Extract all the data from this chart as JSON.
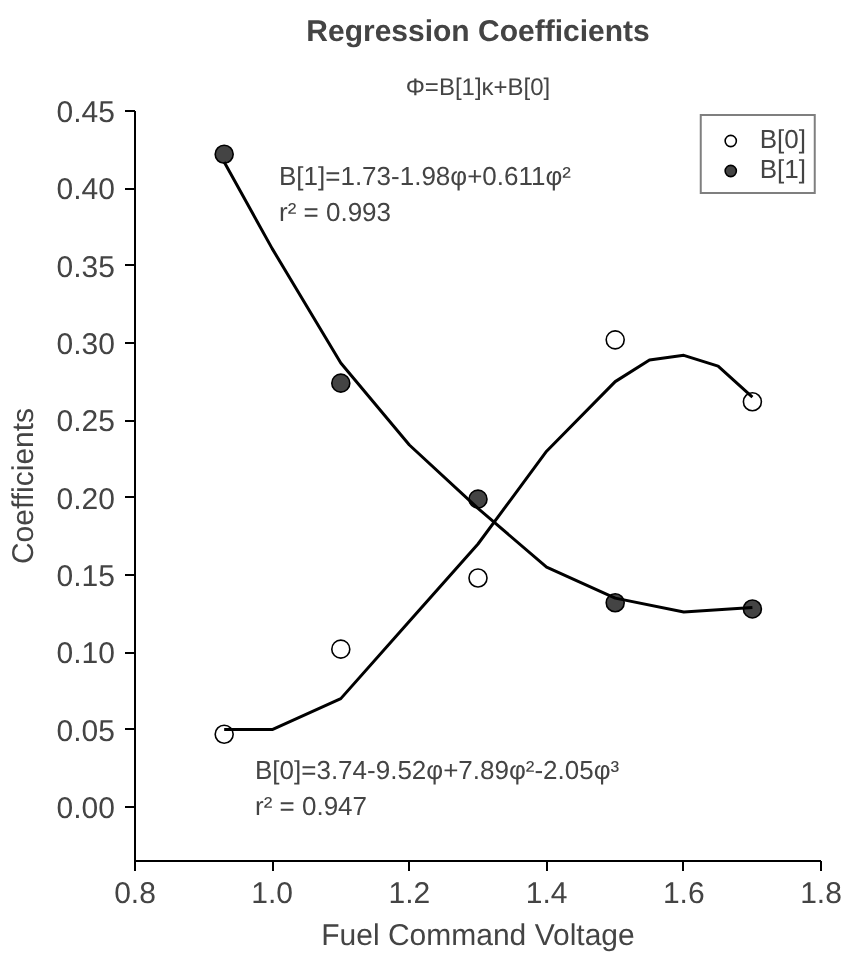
{
  "chart_data": {
    "type": "scatter",
    "title": "Regression Coefficients",
    "subtitle": "Φ=B[1]κ+B[0]",
    "xlabel": "Fuel Command Voltage",
    "ylabel": "Coefficients",
    "xlim": [
      0.8,
      1.8
    ],
    "xticks": [
      0.8,
      {
        "value": 1.0,
        "label": "1.0"
      },
      1.2,
      1.4,
      1.6,
      1.8
    ],
    "ylim": [
      -0.035,
      0.45
    ],
    "yticks": [
      {
        "value": 0.0,
        "label": "0.00"
      },
      0.05,
      {
        "value": 0.1,
        "label": "0.10"
      },
      0.15,
      {
        "value": 0.2,
        "label": "0.20"
      },
      0.25,
      {
        "value": 0.3,
        "label": "0.30"
      },
      0.35,
      {
        "value": 0.4,
        "label": "0.40"
      },
      0.45
    ],
    "grid": false,
    "legend": "top right",
    "series": [
      {
        "name": "B[0]",
        "color": "#ffffff",
        "marker": "circle",
        "x": [
          0.93,
          1.1,
          1.3,
          1.5,
          1.7
        ],
        "values": [
          0.047,
          0.102,
          0.148,
          0.302,
          0.262
        ]
      },
      {
        "name": "B[1]",
        "color": "#444444",
        "marker": "circle",
        "x": [
          0.93,
          1.1,
          1.3,
          1.5,
          1.7
        ],
        "values": [
          0.422,
          0.274,
          0.199,
          0.132,
          0.128
        ]
      },
      {
        "type": "line",
        "color": "#000000",
        "x": [
          0.93,
          1.0,
          1.1,
          1.2,
          1.3,
          1.4,
          1.5,
          1.55,
          1.6,
          1.65,
          1.7
        ],
        "values": [
          0.05,
          0.05,
          0.07,
          0.12,
          0.17,
          0.23,
          0.275,
          0.289,
          0.292,
          0.285,
          0.265
        ]
      },
      {
        "type": "line",
        "color": "#000000",
        "x": [
          0.93,
          1.0,
          1.1,
          1.2,
          1.3,
          1.4,
          1.5,
          1.6,
          1.7
        ],
        "values": [
          0.417,
          0.361,
          0.287,
          0.234,
          0.193,
          0.155,
          0.135,
          0.126,
          0.129
        ]
      }
    ],
    "annotations": [
      "B[1]=1.73-1.98φ+0.611φ²",
      "r² = 0.993",
      "B[0]=3.74-9.52φ+7.89φ²-2.05φ³",
      "r² = 0.947"
    ]
  }
}
